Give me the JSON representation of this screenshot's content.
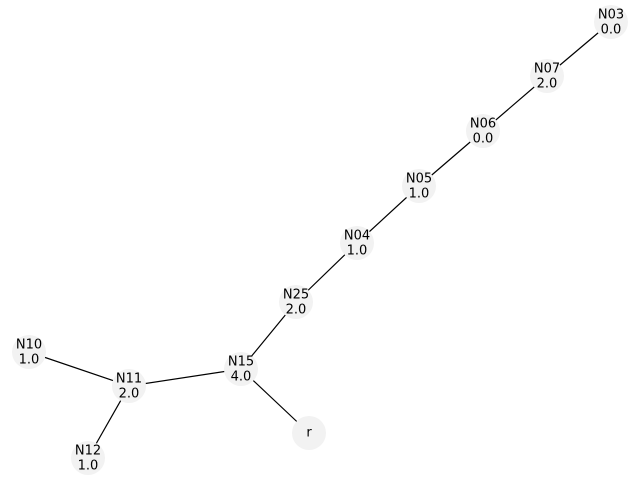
{
  "nodes": [
    {
      "id": "N03",
      "value": "0.0"
    },
    {
      "id": "N07",
      "value": "2.0"
    },
    {
      "id": "N06",
      "value": "0.0"
    },
    {
      "id": "N05",
      "value": "1.0"
    },
    {
      "id": "N04",
      "value": "1.0"
    },
    {
      "id": "N25",
      "value": "2.0"
    },
    {
      "id": "N15",
      "value": "4.0"
    },
    {
      "id": "N11",
      "value": "2.0"
    },
    {
      "id": "N10",
      "value": "1.0"
    },
    {
      "id": "N12",
      "value": "1.0"
    },
    {
      "id": "r",
      "value": ""
    }
  ],
  "edges": [
    [
      "N03",
      "N07"
    ],
    [
      "N07",
      "N06"
    ],
    [
      "N06",
      "N05"
    ],
    [
      "N05",
      "N04"
    ],
    [
      "N04",
      "N25"
    ],
    [
      "N25",
      "N15"
    ],
    [
      "N15",
      "N11"
    ],
    [
      "N15",
      "r"
    ],
    [
      "N11",
      "N10"
    ],
    [
      "N11",
      "N12"
    ]
  ]
}
